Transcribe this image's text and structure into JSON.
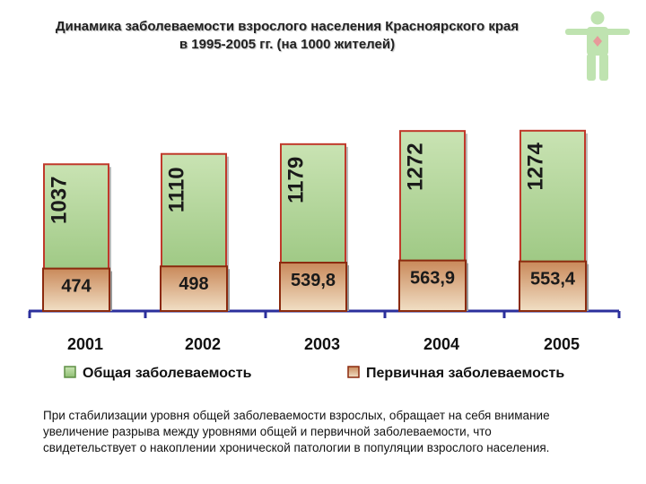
{
  "title_line1": "Динамика заболеваемости взрослого населения Красноярского края",
  "title_line2": "в 1995-2005 гг. (на 1000 жителей)",
  "colors": {
    "total_top": "#c9e3b3",
    "total_bottom": "#8fbf73",
    "total_border": "#c0392b",
    "primary_top": "#c9895a",
    "primary_bottom": "#f1dfc5",
    "primary_border": "#8b2a0e",
    "axis": "#2b2f9c"
  },
  "chart_data": {
    "type": "bar",
    "categories": [
      "2001",
      "2002",
      "2003",
      "2004",
      "2005"
    ],
    "series": [
      {
        "name": "Общая заболеваемость",
        "values": [
          1037,
          1110,
          1179,
          1272,
          1274
        ],
        "labels": [
          "1037",
          "1110",
          "1179",
          "1272",
          "1274"
        ]
      },
      {
        "name": "Первичная заболеваемость",
        "values": [
          474,
          498,
          539.8,
          563.9,
          553.4
        ],
        "labels": [
          "474",
          "498",
          "539,8",
          "563,9",
          "553,4"
        ]
      }
    ],
    "legend_position": "bottom",
    "grid": false
  },
  "note": "При стабилизации уровня общей заболеваемости взрослых, обращает на себя внимание увеличение разрыва между уровнями общей и первичной заболеваемости, что свидетельствует о накоплении хронической патологии в популяции взрослого населения."
}
